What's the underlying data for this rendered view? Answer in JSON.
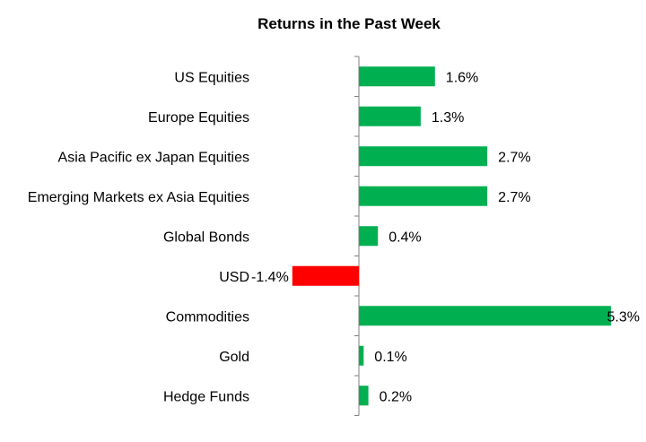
{
  "chart_data": {
    "type": "bar",
    "orientation": "horizontal",
    "title": "Returns in the Past Week",
    "categories": [
      "US Equities",
      "Europe Equities",
      "Asia Pacific ex Japan Equities",
      "Emerging Markets ex Asia Equities",
      "Global Bonds",
      "USD",
      "Commodities",
      "Gold",
      "Hedge Funds"
    ],
    "values": [
      1.6,
      1.3,
      2.7,
      2.7,
      0.4,
      -1.4,
      5.3,
      0.1,
      0.2
    ],
    "labels": [
      "1.6%",
      "1.3%",
      "2.7%",
      "2.7%",
      "0.4%",
      "-1.4%",
      "5.3%",
      "0.1%",
      "0.2%"
    ],
    "unit": "%",
    "colors": {
      "positive": "#00b050",
      "negative": "#ff0000"
    },
    "grid": false,
    "legend": "none"
  }
}
